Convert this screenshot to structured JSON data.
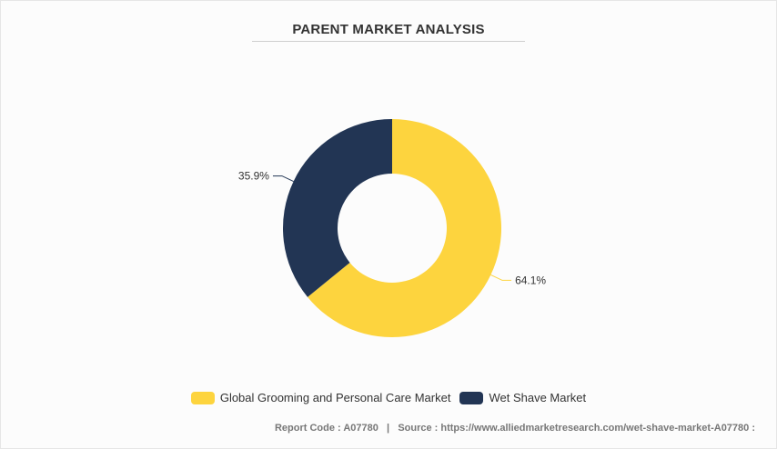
{
  "chart_data": {
    "type": "pie",
    "title": "PARENT MARKET ANALYSIS",
    "donut": true,
    "categories": [
      "Global Grooming and Personal Care Market",
      "Wet Shave Market"
    ],
    "values": [
      64.1,
      35.9
    ],
    "labels": [
      "64.1%",
      "35.9%"
    ],
    "colors": [
      "#FDD43E",
      "#223554"
    ],
    "legend_position": "bottom"
  },
  "footer": {
    "report_code": "Report Code : A07780",
    "separator": "|",
    "source": "Source : https://www.alliedmarketresearch.com/wet-shave-market-A07780 :"
  }
}
